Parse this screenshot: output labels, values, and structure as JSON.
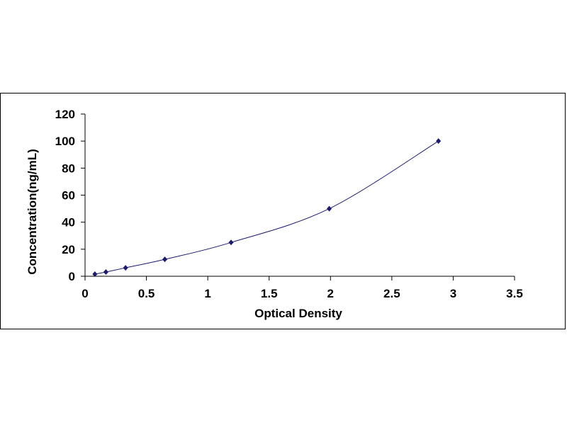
{
  "chart_data": {
    "type": "scatter",
    "xlabel": "Optical Density",
    "ylabel": "Concentration(ng/mL)",
    "xlim": [
      0,
      3.5
    ],
    "ylim": [
      0,
      120
    ],
    "x_ticks": [
      "0",
      "0.5",
      "1",
      "1.5",
      "2",
      "2.5",
      "3",
      "3.5"
    ],
    "y_ticks": [
      "0",
      "20",
      "40",
      "60",
      "80",
      "100",
      "120"
    ],
    "grid": false,
    "legend": "none",
    "smooth_line": true,
    "series": [
      {
        "points": [
          {
            "x": 0.08,
            "y": 1.56
          },
          {
            "x": 0.17,
            "y": 3.13
          },
          {
            "x": 0.33,
            "y": 6.25
          },
          {
            "x": 0.65,
            "y": 12.5
          },
          {
            "x": 1.19,
            "y": 25
          },
          {
            "x": 1.99,
            "y": 50
          },
          {
            "x": 2.88,
            "y": 100
          }
        ],
        "marker_color": "#1a1a6e",
        "line_color": "#1a1a6e"
      }
    ]
  }
}
